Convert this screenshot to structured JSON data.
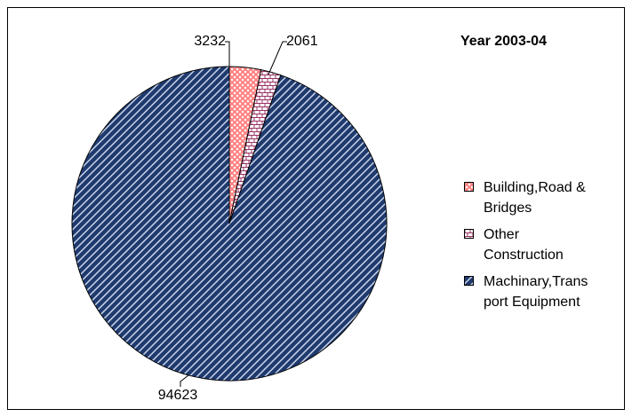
{
  "chart_data": {
    "type": "pie",
    "title": "Year 2003-04",
    "categories": [
      "Building,Road & Bridges",
      "Other Construction",
      "Machinary,Transport Equipment"
    ],
    "values": [
      3232,
      2061,
      94623
    ],
    "colors": [
      "#ff8080",
      "#993366",
      "#1f3a6e"
    ],
    "legend": "right"
  }
}
